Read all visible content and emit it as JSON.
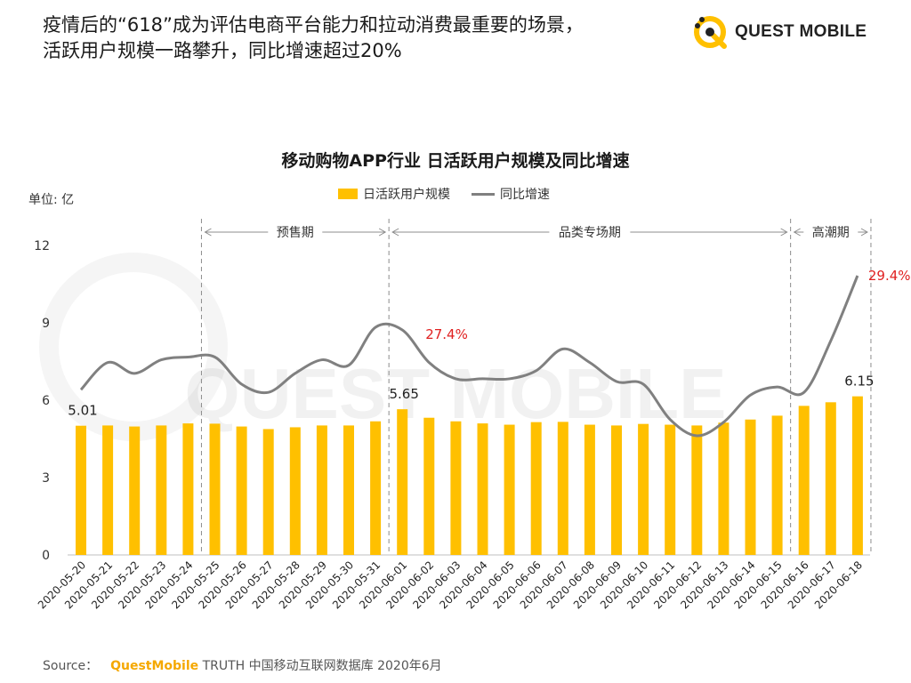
{
  "headline": {
    "line1": "疫情后的“618”成为评估电商平台能力和拉动消费最重要的场景，",
    "line2": "活跃用户规模一路攀升，同比增速超过20%"
  },
  "logo": {
    "text": "QUEST MOBILE",
    "icon": "questmobile-logo-icon",
    "color": "#FFC000"
  },
  "watermark": "QUEST MOBILE",
  "chart_data": {
    "type": "bar",
    "title": "移动购物APP行业 日活跃用户规模及同比增速",
    "unit_label": "单位: 亿",
    "categories": [
      "2020-05-20",
      "2020-05-21",
      "2020-05-22",
      "2020-05-23",
      "2020-05-24",
      "2020-05-25",
      "2020-05-26",
      "2020-05-27",
      "2020-05-28",
      "2020-05-29",
      "2020-05-30",
      "2020-05-31",
      "2020-06-01",
      "2020-06-02",
      "2020-06-03",
      "2020-06-04",
      "2020-06-05",
      "2020-06-06",
      "2020-06-07",
      "2020-06-08",
      "2020-06-09",
      "2020-06-10",
      "2020-06-11",
      "2020-06-12",
      "2020-06-13",
      "2020-06-14",
      "2020-06-15",
      "2020-06-16",
      "2020-06-17",
      "2020-06-18"
    ],
    "series": [
      {
        "name": "日活跃用户规模",
        "type": "bar",
        "color": "#FFC000",
        "values": [
          5.01,
          5.02,
          4.98,
          5.02,
          5.1,
          5.09,
          4.98,
          4.88,
          4.95,
          5.02,
          5.02,
          5.18,
          5.65,
          5.32,
          5.18,
          5.1,
          5.05,
          5.15,
          5.16,
          5.05,
          5.02,
          5.08,
          5.05,
          5.02,
          5.13,
          5.25,
          5.4,
          5.78,
          5.92,
          6.15
        ]
      },
      {
        "name": "同比增速",
        "type": "line",
        "color": "#808080",
        "values": [
          25.2,
          26.2,
          25.8,
          26.3,
          26.4,
          26.4,
          25.4,
          25.1,
          25.8,
          26.3,
          26.1,
          27.5,
          27.4,
          26.2,
          25.6,
          25.6,
          25.6,
          25.9,
          26.7,
          26.2,
          25.5,
          25.4,
          24.1,
          23.5,
          24.0,
          25.0,
          25.3,
          25.1,
          27.0,
          29.4
        ]
      }
    ],
    "ylim": [
      0,
      12
    ],
    "yticks": [
      0,
      3,
      6,
      9,
      12
    ],
    "data_labels": [
      {
        "index": 0,
        "text": "5.01"
      },
      {
        "index": 12,
        "text": "5.65"
      },
      {
        "index": 29,
        "text": "6.15"
      }
    ],
    "pct_labels": [
      {
        "index": 12,
        "text": "27.4%"
      },
      {
        "index": 29,
        "text": "29.4%"
      }
    ],
    "periods": [
      {
        "label": "预售期",
        "start_index": 5,
        "end_index": 11
      },
      {
        "label": "品类专场期",
        "start_index": 12,
        "end_index": 26
      },
      {
        "label": "高潮期",
        "start_index": 27,
        "end_index": 29
      }
    ],
    "legend": {
      "position": "top-center",
      "items": [
        "日活跃用户规模",
        "同比增速"
      ]
    },
    "grid": false
  },
  "source": {
    "prefix": "Source：",
    "brand": "QuestMobile",
    "suffix": " TRUTH 中国移动互联网数据库 2020年6月"
  }
}
